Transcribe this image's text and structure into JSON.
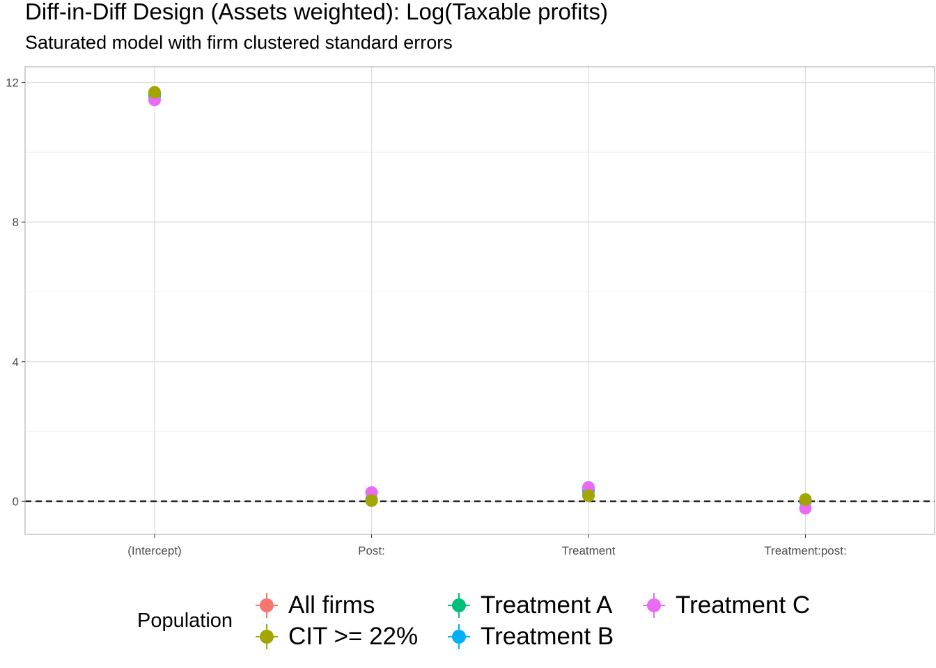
{
  "chart_data": {
    "type": "scatter",
    "title": "Diff-in-Diff Design (Assets weighted): Log(Taxable profits)",
    "subtitle": "Saturated model with firm clustered standard errors",
    "xlabel": "",
    "ylabel": "",
    "categories": [
      "(Intercept)",
      "Post:",
      "Treatment",
      "Treatment:post:"
    ],
    "ylim": [
      -0.95,
      12.45
    ],
    "yticks": [
      0,
      4,
      8,
      12
    ],
    "grid": true,
    "reference_line": {
      "y": 0,
      "style": "dashed"
    },
    "legend": {
      "title": "Population",
      "placement": "bottom"
    },
    "series": [
      {
        "name": "All firms",
        "color": "#F8766D",
        "values": [
          11.7,
          0.02,
          0.18,
          0.05
        ]
      },
      {
        "name": "CIT >= 22%",
        "color": "#A3A500",
        "values": [
          11.72,
          0.02,
          0.16,
          0.05
        ]
      },
      {
        "name": "Treatment A",
        "color": "#00BF7D",
        "values": [
          11.66,
          0.02,
          0.3,
          0.03
        ]
      },
      {
        "name": "Treatment B",
        "color": "#00B0F6",
        "values": [
          11.6,
          0.05,
          0.32,
          0.0
        ]
      },
      {
        "name": "Treatment C",
        "color": "#E76BF3",
        "values": [
          11.5,
          0.25,
          0.4,
          -0.2
        ]
      }
    ],
    "draw_order": [
      0,
      2,
      3,
      4,
      1
    ]
  }
}
